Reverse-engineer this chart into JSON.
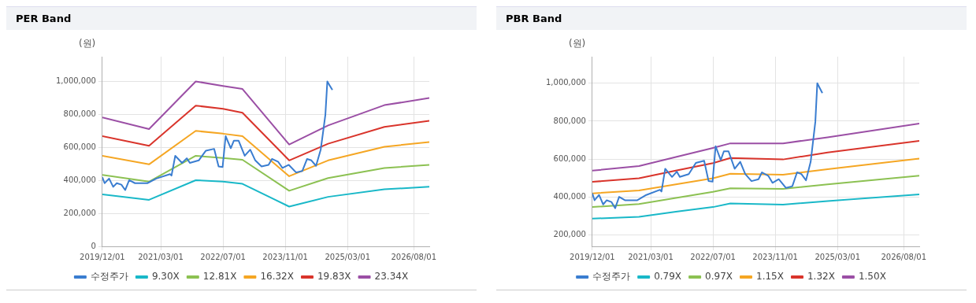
{
  "chart_data": [
    {
      "type": "line",
      "title": "PER Band",
      "ylabel": "(원)",
      "xlim": [
        "2019-12-01",
        "2026-12-01"
      ],
      "ylim": [
        0,
        1150000
      ],
      "xticks": [
        {
          "value": "2019-12-01",
          "label": "2019/12/01"
        },
        {
          "value": "2021-03-01",
          "label": "2021/03/01"
        },
        {
          "value": "2022-07-01",
          "label": "2022/07/01"
        },
        {
          "value": "2023-11-01",
          "label": "2023/11/01"
        },
        {
          "value": "2025-03-01",
          "label": "2025/03/01"
        },
        {
          "value": "2026-08-01",
          "label": "2026/08/01"
        }
      ],
      "yticks": [
        0,
        {
          "value": 200000,
          "label": "200,000"
        },
        {
          "value": 400000,
          "label": "400,000"
        },
        {
          "value": 600000,
          "label": "600,000"
        },
        {
          "value": 800000,
          "label": "800,000"
        },
        {
          "value": 1000000,
          "label": "1,000,000"
        }
      ],
      "grid": true,
      "legend": "bottom",
      "marker": "none",
      "line_style": "solid",
      "series": [
        {
          "name": "수정주가",
          "color": "#3a7dd0",
          "x": [
            "2019-12-01",
            "2019-12-19",
            "2020-01-24",
            "2020-02-24",
            "2020-03-23",
            "2020-04-28",
            "2020-05-28",
            "2020-06-28",
            "2020-08-13",
            "2020-11-18",
            "2021-01-28",
            "2021-05-13",
            "2021-05-25",
            "2021-06-23",
            "2021-08-16",
            "2021-09-22",
            "2021-10-16",
            "2021-12-25",
            "2022-02-18",
            "2022-04-23",
            "2022-05-28",
            "2022-06-28",
            "2022-07-22",
            "2022-09-01",
            "2022-09-25",
            "2022-11-01",
            "2022-12-19",
            "2023-02-01",
            "2023-03-10",
            "2023-04-28",
            "2023-06-22",
            "2023-07-19",
            "2023-09-07",
            "2023-10-10",
            "2023-11-28",
            "2024-01-25",
            "2024-03-13",
            "2024-04-19",
            "2024-05-23",
            "2024-06-28",
            "2024-08-04",
            "2024-08-22",
            "2024-09-10",
            "2024-09-25",
            "2024-10-13",
            "2024-11-04"
          ],
          "values": [
            420000,
            383000,
            411000,
            361000,
            383000,
            374000,
            341000,
            401000,
            383000,
            383000,
            411000,
            438000,
            429000,
            549000,
            506000,
            534000,
            506000,
            521000,
            580000,
            591000,
            484000,
            481000,
            668000,
            595000,
            641000,
            641000,
            549000,
            586000,
            521000,
            484000,
            494000,
            530000,
            512000,
            475000,
            494000,
            448000,
            457000,
            530000,
            521000,
            488000,
            586000,
            687000,
            797000,
            1000000,
            976000,
            948000
          ]
        },
        {
          "name": "9.30X",
          "color": "#19b8c8",
          "x": [
            "2019-12-01",
            "2020-12-01",
            "2021-12-01",
            "2022-07-01",
            "2022-12-01",
            "2023-12-01",
            "2024-10-01",
            "2025-12-15",
            "2026-12-01"
          ],
          "values": [
            315000,
            282000,
            401000,
            392000,
            379000,
            241000,
            300000,
            346000,
            361000
          ]
        },
        {
          "name": "12.81X",
          "color": "#8cc152",
          "x": [
            "2019-12-01",
            "2020-12-01",
            "2021-12-01",
            "2022-07-01",
            "2022-12-01",
            "2023-12-01",
            "2024-10-01",
            "2025-12-15",
            "2026-12-01"
          ],
          "values": [
            433000,
            392000,
            549000,
            536000,
            525000,
            337000,
            414000,
            475000,
            494000
          ]
        },
        {
          "name": "16.32X",
          "color": "#f5a623",
          "x": [
            "2019-12-01",
            "2020-12-01",
            "2021-12-01",
            "2022-07-01",
            "2022-12-01",
            "2023-12-01",
            "2024-10-01",
            "2025-12-15",
            "2026-12-01"
          ],
          "values": [
            549000,
            497000,
            700000,
            683000,
            668000,
            425000,
            521000,
            604000,
            632000
          ]
        },
        {
          "name": "19.83X",
          "color": "#d9342b",
          "x": [
            "2019-12-01",
            "2020-12-01",
            "2021-12-01",
            "2022-07-01",
            "2022-12-01",
            "2023-12-01",
            "2024-10-01",
            "2025-12-15",
            "2026-12-01"
          ],
          "values": [
            668000,
            610000,
            853000,
            834000,
            810000,
            521000,
            622000,
            724000,
            761000
          ]
        },
        {
          "name": "23.34X",
          "color": "#9b4fa5",
          "x": [
            "2019-12-01",
            "2020-12-01",
            "2021-12-01",
            "2022-07-01",
            "2022-12-01",
            "2023-12-01",
            "2024-10-01",
            "2025-12-15",
            "2026-12-01"
          ],
          "values": [
            782000,
            711000,
            1000000,
            972000,
            954000,
            617000,
            733000,
            856000,
            899000
          ]
        }
      ]
    },
    {
      "type": "line",
      "title": "PBR Band",
      "ylabel": "(원)",
      "xlim": [
        "2019-12-01",
        "2026-12-01"
      ],
      "ylim": [
        140000,
        1140000
      ],
      "xticks": [
        {
          "value": "2019-12-01",
          "label": "2019/12/01"
        },
        {
          "value": "2021-03-01",
          "label": "2021/03/01"
        },
        {
          "value": "2022-07-01",
          "label": "2022/07/01"
        },
        {
          "value": "2023-11-01",
          "label": "2023/11/01"
        },
        {
          "value": "2025-03-01",
          "label": "2025/03/01"
        },
        {
          "value": "2026-08-01",
          "label": "2026/08/01"
        }
      ],
      "yticks": [
        {
          "value": 200000,
          "label": "200,000"
        },
        {
          "value": 400000,
          "label": "400,000"
        },
        {
          "value": 600000,
          "label": "600,000"
        },
        {
          "value": 800000,
          "label": "800,000"
        },
        {
          "value": 1000000,
          "label": "1,000,000"
        }
      ],
      "grid": true,
      "legend": "bottom",
      "marker": "none",
      "line_style": "solid",
      "series": [
        {
          "name": "수정주가",
          "color": "#3a7dd0",
          "x": [
            "2019-12-01",
            "2019-12-19",
            "2020-01-24",
            "2020-02-24",
            "2020-03-23",
            "2020-04-28",
            "2020-05-28",
            "2020-06-28",
            "2020-08-13",
            "2020-11-18",
            "2021-01-28",
            "2021-05-13",
            "2021-05-25",
            "2021-06-23",
            "2021-08-16",
            "2021-09-22",
            "2021-10-16",
            "2021-12-25",
            "2022-02-18",
            "2022-04-23",
            "2022-05-28",
            "2022-06-28",
            "2022-07-22",
            "2022-09-01",
            "2022-09-25",
            "2022-11-01",
            "2022-12-19",
            "2023-02-01",
            "2023-03-10",
            "2023-04-28",
            "2023-06-22",
            "2023-07-19",
            "2023-09-07",
            "2023-10-10",
            "2023-11-28",
            "2024-01-25",
            "2024-03-13",
            "2024-04-19",
            "2024-05-23",
            "2024-06-28",
            "2024-08-04",
            "2024-08-22",
            "2024-09-10",
            "2024-09-25",
            "2024-10-13",
            "2024-11-04"
          ],
          "values": [
            420000,
            383000,
            411000,
            361000,
            383000,
            374000,
            341000,
            401000,
            383000,
            383000,
            411000,
            438000,
            429000,
            549000,
            506000,
            534000,
            506000,
            521000,
            580000,
            591000,
            484000,
            481000,
            668000,
            595000,
            641000,
            641000,
            549000,
            586000,
            521000,
            484000,
            494000,
            530000,
            512000,
            475000,
            494000,
            448000,
            457000,
            530000,
            521000,
            488000,
            586000,
            687000,
            797000,
            1000000,
            976000,
            948000
          ]
        },
        {
          "name": "0.79X",
          "color": "#19b8c8",
          "x": [
            "2019-12-01",
            "2020-12-01",
            "2021-09-15",
            "2022-07-01",
            "2022-11-15",
            "2024-01-01",
            "2024-12-15",
            "2026-12-01"
          ],
          "values": [
            286000,
            296000,
            323000,
            347000,
            366000,
            360000,
            379000,
            414000
          ]
        },
        {
          "name": "0.97X",
          "color": "#8cc152",
          "x": [
            "2019-12-01",
            "2020-12-01",
            "2021-09-15",
            "2022-07-01",
            "2022-11-15",
            "2024-01-01",
            "2024-12-15",
            "2026-12-01"
          ],
          "values": [
            347000,
            363000,
            395000,
            427000,
            446000,
            443000,
            467000,
            512000
          ]
        },
        {
          "name": "1.15X",
          "color": "#f5a623",
          "x": [
            "2019-12-01",
            "2020-12-01",
            "2021-09-15",
            "2022-07-01",
            "2022-11-15",
            "2024-01-01",
            "2024-12-15",
            "2026-12-01"
          ],
          "values": [
            419000,
            435000,
            467000,
            499000,
            523000,
            518000,
            547000,
            603000
          ]
        },
        {
          "name": "1.32X",
          "color": "#d9342b",
          "x": [
            "2019-12-01",
            "2020-12-01",
            "2021-09-15",
            "2022-07-01",
            "2022-11-15",
            "2024-01-01",
            "2024-12-15",
            "2026-12-01"
          ],
          "values": [
            480000,
            499000,
            539000,
            579000,
            606000,
            598000,
            635000,
            696000
          ]
        },
        {
          "name": "1.50X",
          "color": "#9b4fa5",
          "x": [
            "2019-12-01",
            "2020-12-01",
            "2021-09-15",
            "2022-07-01",
            "2022-11-15",
            "2024-01-01",
            "2024-12-15",
            "2026-12-01"
          ],
          "values": [
            539000,
            563000,
            611000,
            659000,
            683000,
            683000,
            715000,
            787000
          ]
        }
      ]
    }
  ]
}
